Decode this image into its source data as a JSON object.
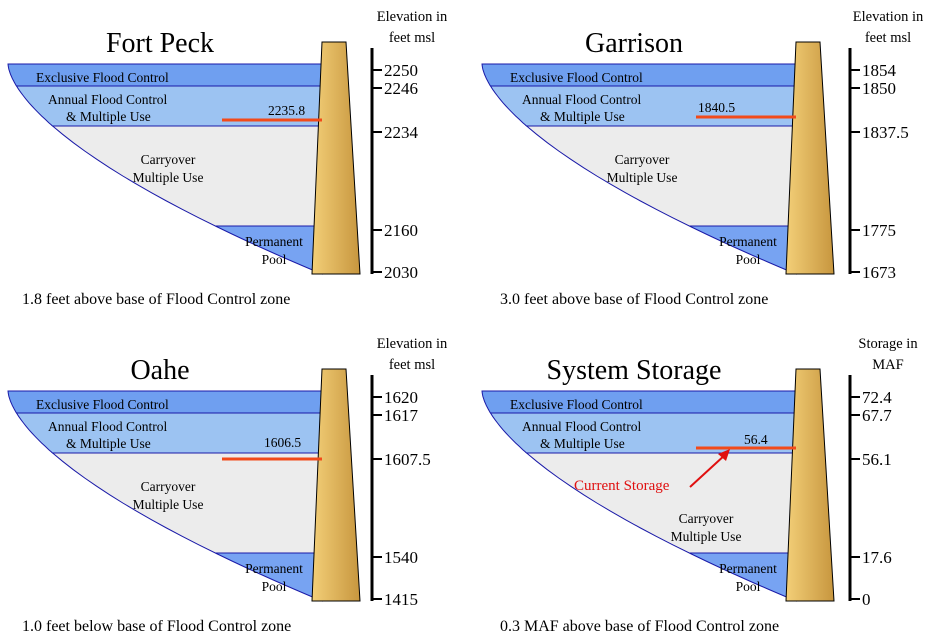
{
  "panels": [
    {
      "title": "Fort Peck",
      "axis_label": [
        "Elevation in",
        "feet msl"
      ],
      "zones": {
        "exclusive": "Exclusive Flood Control",
        "annual": [
          "Annual Flood Control",
          "& Multiple Use"
        ],
        "carryover": [
          "Carryover",
          "Multiple Use"
        ],
        "permanent": [
          "Permanent",
          "Pool"
        ]
      },
      "ticks": [
        "2250",
        "2246",
        "2234",
        "2160",
        "2030"
      ],
      "current_value": "2235.8",
      "current_label": "",
      "caption": "1.8 feet above base of Flood Control zone"
    },
    {
      "title": "Garrison",
      "axis_label": [
        "Elevation in",
        "feet msl"
      ],
      "zones": {
        "exclusive": "Exclusive Flood Control",
        "annual": [
          "Annual Flood Control",
          "& Multiple Use"
        ],
        "carryover": [
          "Carryover",
          "Multiple Use"
        ],
        "permanent": [
          "Permanent",
          "Pool"
        ]
      },
      "ticks": [
        "1854",
        "1850",
        "1837.5",
        "1775",
        "1673"
      ],
      "current_value": "1840.5",
      "current_label": "",
      "caption": "3.0 feet above base of Flood Control zone"
    },
    {
      "title": "Oahe",
      "axis_label": [
        "Elevation in",
        "feet msl"
      ],
      "zones": {
        "exclusive": "Exclusive Flood Control",
        "annual": [
          "Annual Flood Control",
          "& Multiple Use"
        ],
        "carryover": [
          "Carryover",
          "Multiple Use"
        ],
        "permanent": [
          "Permanent",
          "Pool"
        ]
      },
      "ticks": [
        "1620",
        "1617",
        "1607.5",
        "1540",
        "1415"
      ],
      "current_value": "1606.5",
      "current_label": "",
      "caption": "1.0 feet below base of Flood Control zone"
    },
    {
      "title": "System Storage",
      "axis_label": [
        "Storage in",
        "MAF"
      ],
      "zones": {
        "exclusive": "Exclusive Flood Control",
        "annual": [
          "Annual Flood Control",
          "& Multiple Use"
        ],
        "carryover": [
          "Carryover",
          "Multiple Use"
        ],
        "permanent": [
          "Permanent",
          "Pool"
        ]
      },
      "ticks": [
        "72.4",
        "67.7",
        "56.1",
        "17.6",
        "0"
      ],
      "current_value": "56.4",
      "current_label": "Current Storage",
      "caption": "0.3 MAF above base of Flood Control zone"
    }
  ],
  "colors": {
    "exclusive": "#6f9ff0",
    "annual": "#9cc3f2",
    "carryover": "#ececec",
    "permanent": "#77a3f2",
    "outline": "#1a1aa8",
    "current_line": "#f24a1a",
    "current_label": "#e01010",
    "dam_light": "#f3cf78",
    "dam_dark": "#c7963e"
  }
}
